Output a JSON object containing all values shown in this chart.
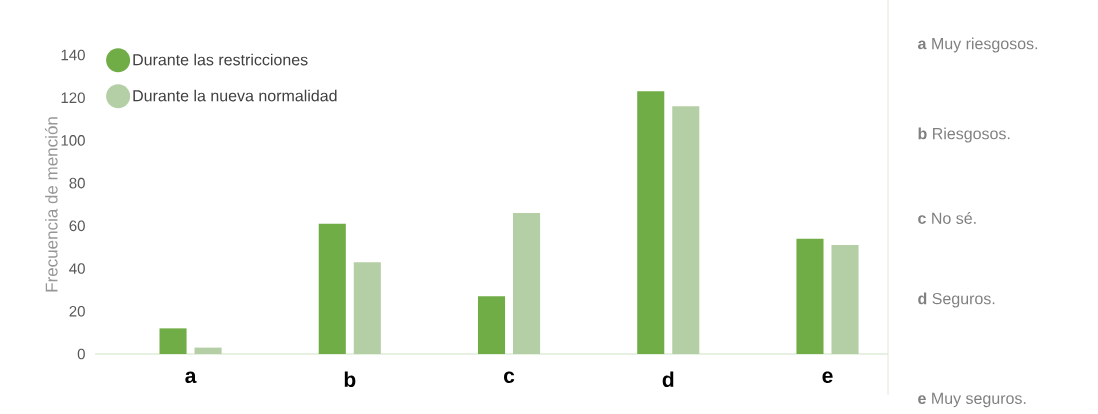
{
  "chart_data": {
    "type": "bar",
    "ylabel": "Frecuencia de mención",
    "categories": [
      "a",
      "b",
      "c",
      "d",
      "e"
    ],
    "series": [
      {
        "name": "Durante las restricciones",
        "color": "#70ad47",
        "values": [
          12,
          61,
          27,
          123,
          54
        ]
      },
      {
        "name": "Durante la nueva normalidad",
        "color": "#b4cfa5",
        "values": [
          3,
          43,
          66,
          116,
          51
        ]
      }
    ],
    "ylim": [
      0,
      140
    ],
    "yticks": [
      0,
      20,
      40,
      60,
      80,
      100,
      120,
      140
    ],
    "grid": false,
    "legend": "top left",
    "annotations": [
      "**a** Muy riesgosos.",
      "**b** Riesgosos.",
      "**c** No sé.",
      "**d** Seguros.",
      "**e** Muy seguros."
    ]
  }
}
